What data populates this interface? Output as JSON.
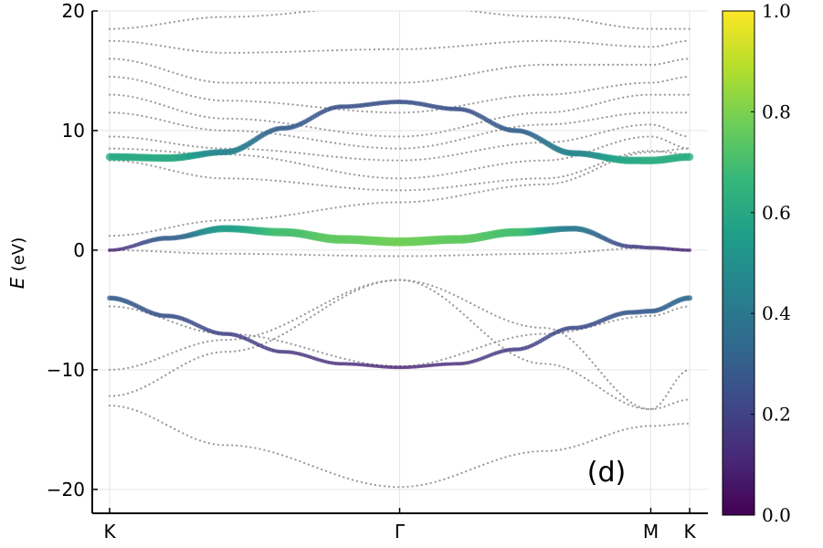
{
  "chart_data": {
    "type": "scatter",
    "title": "",
    "ylabel_symbol": "E",
    "ylabel_unit": "(eV)",
    "xlabel": "",
    "ylim": [
      -22,
      20
    ],
    "yticks": [
      -20,
      -10,
      0,
      10,
      20
    ],
    "ytick_labels": [
      "−20",
      "−10",
      "0",
      "10",
      "20"
    ],
    "xlim": [
      0,
      1
    ],
    "xticks": [
      {
        "label": "K",
        "x": 0.0
      },
      {
        "label": "Γ",
        "x": 0.5
      },
      {
        "label": "M",
        "x": 0.933
      },
      {
        "label": "K",
        "x": 1.0
      }
    ],
    "grid": true,
    "annotation": "(d)",
    "colorbar": {
      "colormap": "viridis",
      "range": [
        0.0,
        1.0
      ],
      "ticks": [
        "0.0",
        "0.2",
        "0.4",
        "0.6",
        "0.8",
        "1.0"
      ],
      "stops": [
        "#440154",
        "#482878",
        "#3e4989",
        "#31688e",
        "#26828e",
        "#1f9e89",
        "#35b779",
        "#6ece58",
        "#b5de2b",
        "#fde725"
      ]
    },
    "background_band_color": "#999999",
    "background_bands_knots": [
      [
        -13.0,
        -16.3,
        -19.8,
        -16.8,
        -14.7,
        -14.5
      ],
      [
        -12.2,
        -8.5,
        -2.5,
        -9.5,
        -13.3,
        -12.5
      ],
      [
        -10.0,
        -7.5,
        -2.5,
        -6.5,
        -13.3,
        -10.0
      ],
      [
        -4.7,
        -7.0,
        -9.7,
        -7.0,
        -5.5,
        -4.7
      ],
      [
        0.0,
        -0.3,
        -0.5,
        -0.3,
        0.2,
        0.0
      ],
      [
        1.2,
        2.5,
        4.0,
        5.5,
        8.2,
        8.5
      ],
      [
        7.5,
        6.0,
        5.0,
        6.0,
        8.3,
        8.0
      ],
      [
        8.5,
        8.0,
        6.0,
        7.5,
        9.5,
        8.5
      ],
      [
        9.5,
        8.5,
        7.5,
        9.0,
        10.5,
        9.5
      ],
      [
        11.5,
        10.0,
        8.5,
        10.5,
        11.5,
        11.5
      ],
      [
        13.0,
        11.0,
        9.5,
        11.5,
        13.0,
        13.0
      ],
      [
        14.5,
        12.5,
        11.5,
        13.0,
        14.0,
        14.5
      ],
      [
        16.0,
        14.0,
        14.0,
        15.5,
        15.5,
        16.0
      ],
      [
        17.5,
        16.5,
        16.8,
        17.5,
        17.0,
        17.5
      ],
      [
        18.5,
        19.5,
        20.5,
        19.5,
        18.5,
        18.5
      ]
    ],
    "series": [
      {
        "x": [
          0.0,
          0.1,
          0.2,
          0.3,
          0.4,
          0.5,
          0.6,
          0.7,
          0.8,
          0.9,
          0.933,
          1.0
        ],
        "energy": [
          7.8,
          7.7,
          8.2,
          10.2,
          12.0,
          12.4,
          11.8,
          10.0,
          8.1,
          7.5,
          7.5,
          7.8
        ],
        "weight": [
          0.6,
          0.6,
          0.45,
          0.3,
          0.25,
          0.25,
          0.25,
          0.3,
          0.45,
          0.6,
          0.62,
          0.62
        ]
      },
      {
        "x": [
          0.0,
          0.1,
          0.2,
          0.3,
          0.4,
          0.5,
          0.6,
          0.7,
          0.8,
          0.9,
          0.933,
          1.0
        ],
        "energy": [
          0.0,
          1.0,
          1.8,
          1.5,
          0.9,
          0.7,
          0.9,
          1.5,
          1.8,
          0.3,
          0.2,
          0.0
        ],
        "weight": [
          0.1,
          0.3,
          0.55,
          0.7,
          0.75,
          0.78,
          0.75,
          0.7,
          0.4,
          0.2,
          0.15,
          0.1
        ]
      },
      {
        "x": [
          0.0,
          0.1,
          0.2,
          0.3,
          0.4,
          0.5,
          0.6,
          0.7,
          0.8,
          0.9,
          0.933,
          1.0
        ],
        "energy": [
          -4.0,
          -5.5,
          -7.0,
          -8.5,
          -9.5,
          -9.8,
          -9.5,
          -8.3,
          -6.5,
          -5.2,
          -5.1,
          -4.0
        ],
        "weight": [
          0.3,
          0.25,
          0.2,
          0.15,
          0.12,
          0.1,
          0.12,
          0.18,
          0.22,
          0.28,
          0.3,
          0.35
        ]
      }
    ]
  }
}
